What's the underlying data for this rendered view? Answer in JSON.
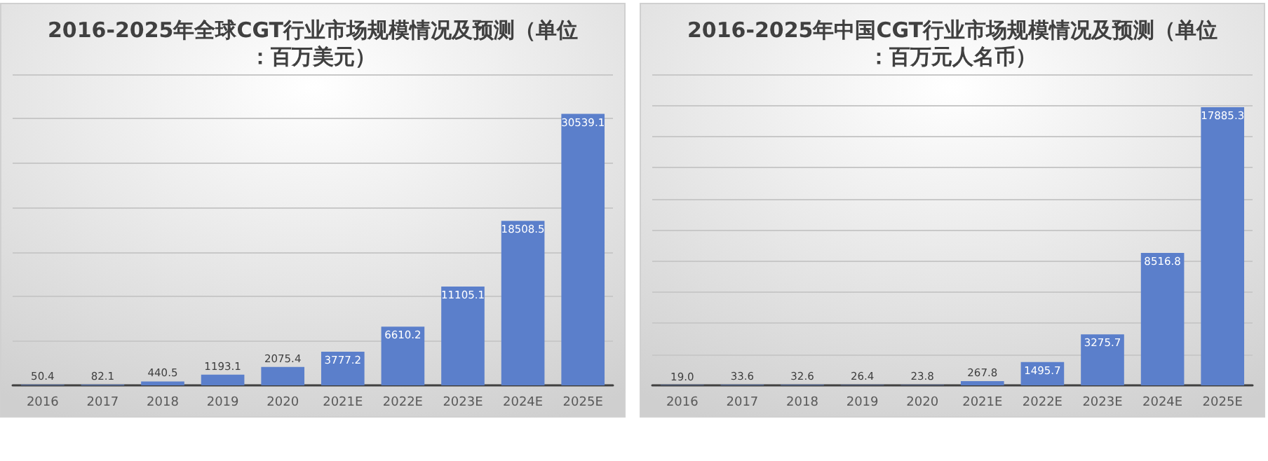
{
  "chart_data": [
    {
      "type": "bar",
      "title": "2016-2025年全球CGT行业市场规模情况及预测（单位：百万美元）",
      "categories": [
        "2016",
        "2017",
        "2018",
        "2019",
        "2020",
        "2021E",
        "2022E",
        "2023E",
        "2024E",
        "2025E"
      ],
      "values": [
        50.4,
        82.1,
        440.5,
        1193.1,
        2075.4,
        3777.2,
        6610.2,
        11105.1,
        18508.5,
        30539.1
      ],
      "color": "#5b7fcb",
      "data_labels": true,
      "ylim": [
        0,
        35000
      ],
      "yticks": [
        {
          "value": 0,
          "label": null
        },
        {
          "value": 5000,
          "label": null
        },
        {
          "value": 10000,
          "label": null
        },
        {
          "value": 15000,
          "label": null
        },
        {
          "value": 20000,
          "label": null
        },
        {
          "value": 25000,
          "label": null
        },
        {
          "value": 30000,
          "label": null
        },
        {
          "value": 35000,
          "label": null
        }
      ],
      "tick_labels": "x",
      "grid": "y"
    },
    {
      "type": "bar",
      "title": "2016-2025年中国CGT行业市场规模情况及预测（单位：百万元人名币）",
      "categories": [
        "2016",
        "2017",
        "2018",
        "2019",
        "2020",
        "2021E",
        "2022E",
        "2023E",
        "2024E",
        "2025E"
      ],
      "values": [
        19.0,
        33.6,
        32.6,
        26.4,
        23.8,
        267.8,
        1495.7,
        3275.7,
        8516.8,
        17885.3
      ],
      "value_labels": [
        "19.0",
        "33.6",
        "32.6",
        "26.4",
        "23.8",
        "267.8",
        "1495.7",
        "3275.7",
        "8516.8",
        "17885.3"
      ],
      "color": "#5b7fcb",
      "ylim": [
        0,
        20000
      ],
      "yticks": [
        {
          "value": 0,
          "label": null
        },
        {
          "value": 2000,
          "label": null
        },
        {
          "value": 4000,
          "label": null
        },
        {
          "value": 6000,
          "label": null
        },
        {
          "value": 8000,
          "label": null
        },
        {
          "value": 10000,
          "label": null
        },
        {
          "value": 12000,
          "label": null
        },
        {
          "value": 14000,
          "label": null
        },
        {
          "value": 16000,
          "label": null
        },
        {
          "value": 18000,
          "label": null
        },
        {
          "value": 20000,
          "label": null
        }
      ],
      "tick_labels": "x",
      "grid": "y"
    }
  ]
}
